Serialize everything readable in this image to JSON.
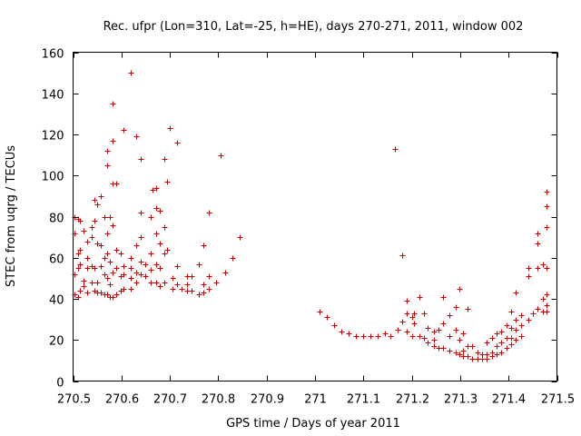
{
  "chart_data": {
    "type": "scatter",
    "title": "Rec. ufpr (Lon=310, Lat=-25, h=HE), days 270-271, 2011, window 002",
    "xlabel": "GPS time / Days of year 2011",
    "ylabel": "STEC from uqrg / TECUs",
    "xlim": [
      270.5,
      271.5
    ],
    "ylim": [
      0,
      160
    ],
    "xticks": [
      "270.5",
      "270.6",
      "270.7",
      "270.8",
      "270.9",
      "271",
      "271.1",
      "271.2",
      "271.3",
      "271.4",
      "271.5"
    ],
    "yticks": [
      "0",
      "20",
      "40",
      "60",
      "80",
      "100",
      "120",
      "140",
      "160"
    ],
    "grid": false,
    "legend": "none",
    "marker": "plus",
    "color": "#cc0000",
    "series": [
      {
        "points": [
          [
            270.502,
            80
          ],
          [
            270.502,
            72
          ],
          [
            270.502,
            52
          ],
          [
            270.502,
            42
          ],
          [
            270.51,
            79
          ],
          [
            270.51,
            62
          ],
          [
            270.51,
            55
          ],
          [
            270.51,
            41
          ],
          [
            270.515,
            78
          ],
          [
            270.515,
            64
          ],
          [
            270.515,
            57
          ],
          [
            270.515,
            44
          ],
          [
            270.522,
            73
          ],
          [
            270.522,
            49
          ],
          [
            270.522,
            46
          ],
          [
            270.53,
            68
          ],
          [
            270.53,
            60
          ],
          [
            270.53,
            55
          ],
          [
            270.53,
            43
          ],
          [
            270.538,
            75
          ],
          [
            270.538,
            70
          ],
          [
            270.538,
            56
          ],
          [
            270.538,
            48
          ],
          [
            270.545,
            88
          ],
          [
            270.545,
            78
          ],
          [
            270.545,
            55
          ],
          [
            270.545,
            44
          ],
          [
            270.55,
            86
          ],
          [
            270.55,
            67
          ],
          [
            270.55,
            48
          ],
          [
            270.55,
            43
          ],
          [
            270.558,
            90
          ],
          [
            270.558,
            66
          ],
          [
            270.558,
            56
          ],
          [
            270.558,
            43
          ],
          [
            270.565,
            80
          ],
          [
            270.565,
            60
          ],
          [
            270.565,
            52
          ],
          [
            270.565,
            42
          ],
          [
            270.57,
            105
          ],
          [
            270.57,
            112
          ],
          [
            270.57,
            72
          ],
          [
            270.57,
            62
          ],
          [
            270.57,
            50
          ],
          [
            270.57,
            42
          ],
          [
            270.576,
            80
          ],
          [
            270.576,
            58
          ],
          [
            270.576,
            47
          ],
          [
            270.576,
            41
          ],
          [
            270.582,
            135
          ],
          [
            270.582,
            117
          ],
          [
            270.582,
            96
          ],
          [
            270.582,
            76
          ],
          [
            270.582,
            53
          ],
          [
            270.582,
            41
          ],
          [
            270.59,
            96
          ],
          [
            270.59,
            64
          ],
          [
            270.59,
            55
          ],
          [
            270.59,
            42
          ],
          [
            270.598,
            62
          ],
          [
            270.598,
            51
          ],
          [
            270.598,
            44
          ],
          [
            270.605,
            122
          ],
          [
            270.605,
            56
          ],
          [
            270.605,
            52
          ],
          [
            270.605,
            45
          ],
          [
            270.62,
            150
          ],
          [
            270.62,
            60
          ],
          [
            270.62,
            55
          ],
          [
            270.62,
            50
          ],
          [
            270.62,
            45
          ],
          [
            270.63,
            119
          ],
          [
            270.63,
            66
          ],
          [
            270.63,
            53
          ],
          [
            270.63,
            48
          ],
          [
            270.64,
            108
          ],
          [
            270.64,
            82
          ],
          [
            270.64,
            70
          ],
          [
            270.64,
            58
          ],
          [
            270.64,
            52
          ],
          [
            270.65,
            57
          ],
          [
            270.65,
            51
          ],
          [
            270.66,
            80
          ],
          [
            270.66,
            62
          ],
          [
            270.66,
            54
          ],
          [
            270.66,
            48
          ],
          [
            270.665,
            93
          ],
          [
            270.672,
            94
          ],
          [
            270.672,
            84
          ],
          [
            270.672,
            72
          ],
          [
            270.672,
            57
          ],
          [
            270.672,
            48
          ],
          [
            270.68,
            83
          ],
          [
            270.68,
            67
          ],
          [
            270.68,
            55
          ],
          [
            270.68,
            46
          ],
          [
            270.688,
            108
          ],
          [
            270.688,
            75
          ],
          [
            270.688,
            62
          ],
          [
            270.688,
            48
          ],
          [
            270.695,
            97
          ],
          [
            270.695,
            64
          ],
          [
            270.7,
            123
          ],
          [
            270.705,
            50
          ],
          [
            270.705,
            45
          ],
          [
            270.715,
            116
          ],
          [
            270.715,
            56
          ],
          [
            270.715,
            47
          ],
          [
            270.725,
            45
          ],
          [
            270.735,
            51
          ],
          [
            270.735,
            47
          ],
          [
            270.735,
            44
          ],
          [
            270.745,
            51
          ],
          [
            270.745,
            44
          ],
          [
            270.76,
            57
          ],
          [
            270.76,
            42
          ],
          [
            270.77,
            66
          ],
          [
            270.77,
            47
          ],
          [
            270.77,
            43
          ],
          [
            270.78,
            82
          ],
          [
            270.78,
            51
          ],
          [
            270.78,
            45
          ],
          [
            270.795,
            48
          ],
          [
            270.805,
            110
          ],
          [
            270.815,
            53
          ],
          [
            270.83,
            60
          ],
          [
            270.845,
            70
          ],
          [
            271.01,
            34
          ],
          [
            271.025,
            31
          ],
          [
            271.04,
            27
          ],
          [
            271.055,
            24
          ],
          [
            271.07,
            23
          ],
          [
            271.085,
            22
          ],
          [
            271.1,
            22
          ],
          [
            271.115,
            22
          ],
          [
            271.13,
            22
          ],
          [
            271.145,
            23
          ],
          [
            271.155,
            22
          ],
          [
            271.165,
            113
          ],
          [
            271.17,
            25
          ],
          [
            271.18,
            61
          ],
          [
            271.18,
            29
          ],
          [
            271.19,
            39
          ],
          [
            271.19,
            33
          ],
          [
            271.19,
            24
          ],
          [
            271.2,
            31
          ],
          [
            271.2,
            22
          ],
          [
            271.205,
            33
          ],
          [
            271.205,
            28
          ],
          [
            271.215,
            41
          ],
          [
            271.215,
            22
          ],
          [
            271.225,
            33
          ],
          [
            271.225,
            21
          ],
          [
            271.232,
            26
          ],
          [
            271.232,
            19
          ],
          [
            271.245,
            24
          ],
          [
            271.245,
            20
          ],
          [
            271.245,
            17
          ],
          [
            271.255,
            25
          ],
          [
            271.255,
            16
          ],
          [
            271.265,
            41
          ],
          [
            271.265,
            28
          ],
          [
            271.265,
            16
          ],
          [
            271.278,
            32
          ],
          [
            271.278,
            22
          ],
          [
            271.278,
            15
          ],
          [
            271.29,
            36
          ],
          [
            271.29,
            25
          ],
          [
            271.29,
            14
          ],
          [
            271.298,
            45
          ],
          [
            271.298,
            20
          ],
          [
            271.298,
            13
          ],
          [
            271.306,
            23
          ],
          [
            271.306,
            15
          ],
          [
            271.306,
            12
          ],
          [
            271.315,
            35
          ],
          [
            271.315,
            17
          ],
          [
            271.315,
            12
          ],
          [
            271.325,
            17
          ],
          [
            271.325,
            11
          ],
          [
            271.335,
            14
          ],
          [
            271.335,
            11
          ],
          [
            271.345,
            13
          ],
          [
            271.345,
            11
          ],
          [
            271.355,
            19
          ],
          [
            271.355,
            13
          ],
          [
            271.355,
            11
          ],
          [
            271.365,
            21
          ],
          [
            271.365,
            14
          ],
          [
            271.365,
            12
          ],
          [
            271.375,
            23
          ],
          [
            271.375,
            17
          ],
          [
            271.375,
            13
          ],
          [
            271.385,
            24
          ],
          [
            271.385,
            19
          ],
          [
            271.385,
            14
          ],
          [
            271.395,
            27
          ],
          [
            271.395,
            21
          ],
          [
            271.395,
            16
          ],
          [
            271.405,
            34
          ],
          [
            271.405,
            26
          ],
          [
            271.405,
            21
          ],
          [
            271.405,
            18
          ],
          [
            271.415,
            43
          ],
          [
            271.415,
            30
          ],
          [
            271.415,
            25
          ],
          [
            271.415,
            20
          ],
          [
            271.425,
            32
          ],
          [
            271.425,
            27
          ],
          [
            271.425,
            22
          ],
          [
            271.44,
            55
          ],
          [
            271.44,
            51
          ],
          [
            271.44,
            30
          ],
          [
            271.45,
            33
          ],
          [
            271.46,
            72
          ],
          [
            271.46,
            67
          ],
          [
            271.46,
            55
          ],
          [
            271.46,
            35
          ],
          [
            271.47,
            57
          ],
          [
            271.47,
            40
          ],
          [
            271.47,
            34
          ],
          [
            271.478,
            92
          ],
          [
            271.478,
            85
          ],
          [
            271.478,
            75
          ],
          [
            271.478,
            55
          ],
          [
            271.478,
            42
          ],
          [
            271.478,
            37
          ],
          [
            271.478,
            34
          ]
        ]
      }
    ]
  }
}
